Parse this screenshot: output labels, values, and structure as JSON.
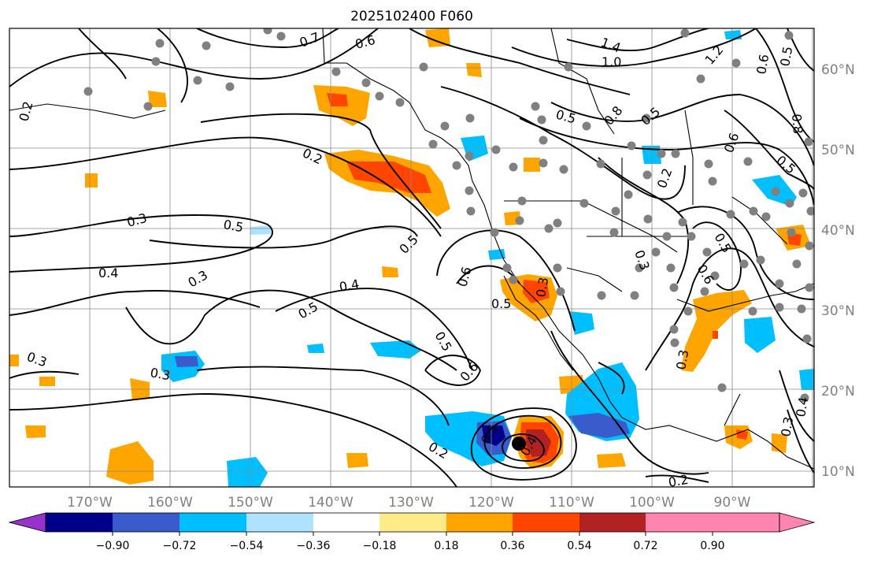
{
  "map": {
    "title": "2025102400 F060",
    "lat_labels": [
      "10°N",
      "20°N",
      "30°N",
      "40°N",
      "50°N",
      "60°N"
    ],
    "lon_labels": [
      "170°W",
      "160°W",
      "150°W",
      "140°W",
      "130°W",
      "120°W",
      "110°W",
      "100°W",
      "90°W"
    ],
    "contour_labels": [
      "0.7",
      "0.6",
      "1.4",
      "1.0",
      "1.2",
      "0.6",
      "0.5",
      "0.2",
      "0.5",
      "0.8",
      "0.5",
      "0.6",
      "0.5",
      "0.8",
      "0.2",
      "0.3",
      "0.5",
      "0.5",
      "0.4",
      "0.3",
      "0.6",
      "0.5",
      "0.3",
      "0.6",
      "0.5",
      "0.4",
      "0.5",
      "0.3",
      "0.5",
      "0.6",
      "0.3",
      "0.3",
      "0.2",
      "0.3",
      "0.4",
      "0.2",
      "0.4",
      "0.3",
      "0.5",
      "0.2"
    ]
  },
  "colorbar": {
    "ticks": [
      "−0.90",
      "−0.72",
      "−0.54",
      "−0.36",
      "−0.18",
      "0.18",
      "0.36",
      "0.54",
      "0.72",
      "0.90"
    ],
    "colors": [
      "#9932cc",
      "#00008b",
      "#3a5bcc",
      "#00bfff",
      "#aee2ff",
      "#ffffff",
      "#ffeb8a",
      "#ffa500",
      "#ff4500",
      "#b22222",
      "#ff85b0"
    ]
  }
}
